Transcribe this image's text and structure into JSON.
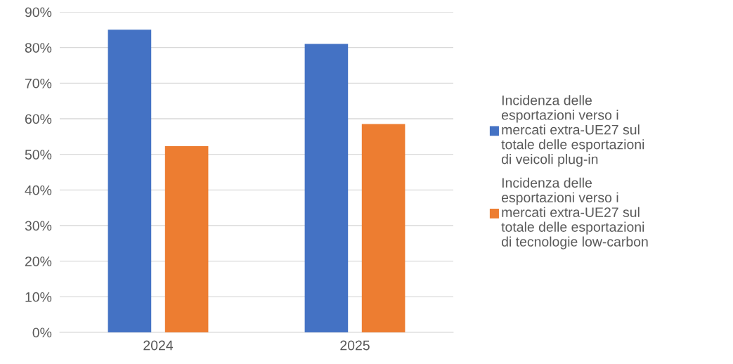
{
  "chart_data": {
    "type": "bar",
    "categories": [
      "2024",
      "2025"
    ],
    "series": [
      {
        "name": "Incidenza delle esportazioni verso i mercati extra-UE27 sul totale delle esportazioni di veicoli plug-in",
        "color": "#4472c4",
        "values": [
          85,
          81
        ]
      },
      {
        "name": "Incidenza delle esportazioni verso i mercati extra-UE27 sul totale delle esportazioni di tecnologie low-carbon",
        "color": "#ed7d31",
        "values": [
          52.3,
          58.5
        ]
      }
    ],
    "ylim": [
      0,
      90
    ],
    "yticks": [
      {
        "value": 0,
        "label": "0%"
      },
      {
        "value": 10,
        "label": "10%"
      },
      {
        "value": 20,
        "label": "20%"
      },
      {
        "value": 30,
        "label": "30%"
      },
      {
        "value": 40,
        "label": "40%"
      },
      {
        "value": 50,
        "label": "50%"
      },
      {
        "value": 60,
        "label": "60%"
      },
      {
        "value": 70,
        "label": "70%"
      },
      {
        "value": 80,
        "label": "80%"
      },
      {
        "value": 90,
        "label": "90%"
      }
    ],
    "grid": "y",
    "legend": "right"
  }
}
